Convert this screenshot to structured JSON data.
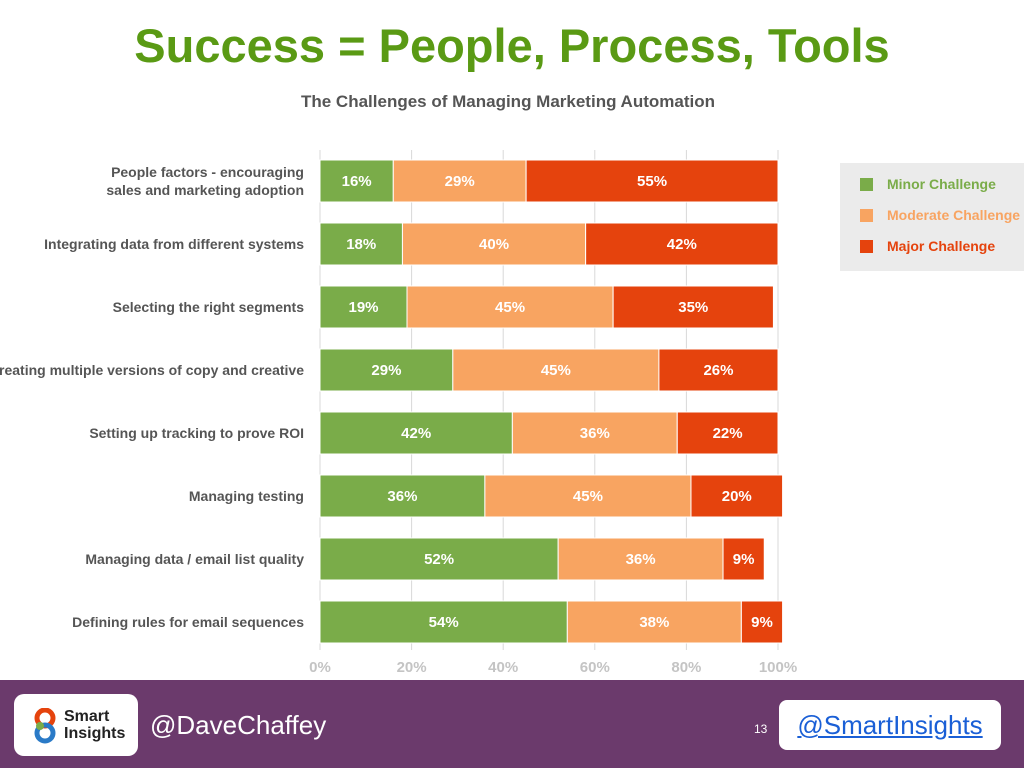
{
  "slide": {
    "title": "Success = People, Process, Tools",
    "page_number": "13"
  },
  "footer": {
    "logo_text_line1": "Smart",
    "logo_text_line2": "Insights",
    "left_handle": "@DaveChaffey",
    "right_handle": "@SmartInsights"
  },
  "colors": {
    "title": "#5a9a14",
    "minor": "#7aac49",
    "moderate": "#f8a461",
    "major": "#e5430d",
    "footer": "#6b3a6c",
    "link": "#1a5fd6"
  },
  "chart_data": {
    "type": "bar",
    "orientation": "horizontal",
    "stacked": true,
    "title": "The Challenges of Managing Marketing Automation",
    "categories": [
      "People factors - encouraging sales and marketing adoption",
      "Integrating data from different systems",
      "Selecting the right segments",
      "Creating multiple versions of copy and creative",
      "Setting up tracking to prove ROI",
      "Managing testing",
      "Managing data / email list quality",
      "Defining rules for email sequences"
    ],
    "series": [
      {
        "name": "Minor Challenge",
        "color": "#7aac49",
        "values": [
          16,
          18,
          19,
          29,
          42,
          36,
          52,
          54
        ]
      },
      {
        "name": "Moderate Challenge",
        "color": "#f8a461",
        "values": [
          29,
          40,
          45,
          45,
          36,
          45,
          36,
          38
        ]
      },
      {
        "name": "Major Challenge",
        "color": "#e5430d",
        "values": [
          55,
          42,
          35,
          26,
          22,
          20,
          9,
          9
        ]
      }
    ],
    "data_labels": [
      [
        "16%",
        "29%",
        "55%"
      ],
      [
        "18%",
        "40%",
        "42%"
      ],
      [
        "19%",
        "45%",
        "35%"
      ],
      [
        "29%",
        "45%",
        "26%"
      ],
      [
        "42%",
        "36%",
        "22%"
      ],
      [
        "36%",
        "45%",
        "20%"
      ],
      [
        "52%",
        "36%",
        "9%"
      ],
      [
        "54%",
        "38%",
        "9%"
      ]
    ],
    "xticks": [
      "0%",
      "20%",
      "40%",
      "60%",
      "80%",
      "100%"
    ],
    "xlim": [
      0,
      100
    ],
    "grid": true,
    "legend_position": "right"
  }
}
